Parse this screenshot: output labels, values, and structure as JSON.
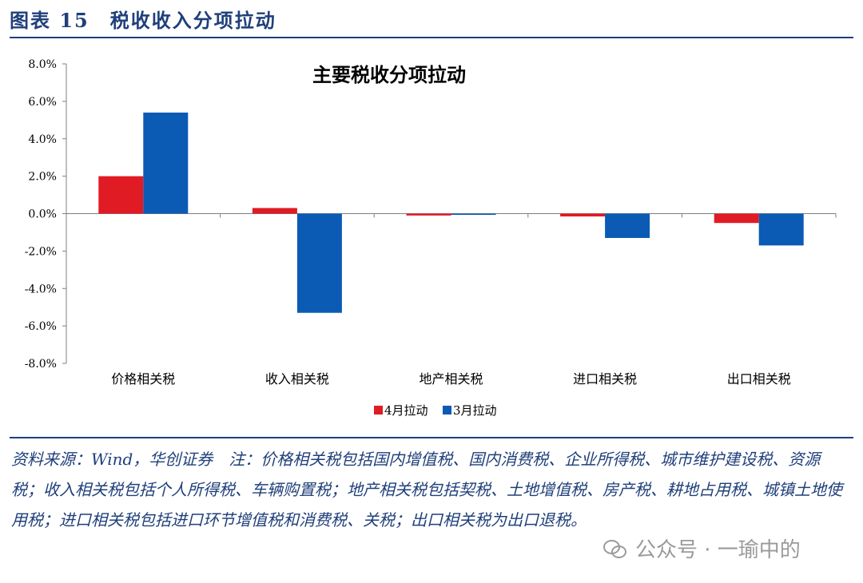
{
  "header": {
    "figure_title": "图表 15　税收收入分项拉动"
  },
  "chart_data": {
    "type": "bar",
    "title": "主要税收分项拉动",
    "categories": [
      "价格相关税",
      "收入相关税",
      "地产相关税",
      "进口相关税",
      "出口相关税"
    ],
    "series": [
      {
        "name": "4月拉动",
        "values": [
          2.0,
          0.3,
          -0.1,
          -0.15,
          -0.5
        ],
        "color": "#e01b24"
      },
      {
        "name": "3月拉动",
        "values": [
          5.4,
          -5.3,
          -0.05,
          -1.3,
          -1.7
        ],
        "color": "#0b5bb5"
      }
    ],
    "yticks": [
      "-8.0%",
      "-6.0%",
      "-4.0%",
      "-2.0%",
      "0.0%",
      "2.0%",
      "4.0%",
      "6.0%",
      "8.0%"
    ],
    "ylim": [
      -8,
      8
    ],
    "grid": false,
    "legend_position": "bottom"
  },
  "footer": {
    "note": "资料来源：Wind，华创证券　注：价格相关税包括国内增值税、国内消费税、企业所得税、城市维护建设税、资源税；收入相关税包括个人所得税、车辆购置税；地产相关税包括契税、土地增值税、房产税、耕地占用税、城镇土地使用税；进口相关税包括进口环节增值税和消费税、关税；出口相关税为出口退税。",
    "watermark": "公众号 · 一瑜中的"
  }
}
